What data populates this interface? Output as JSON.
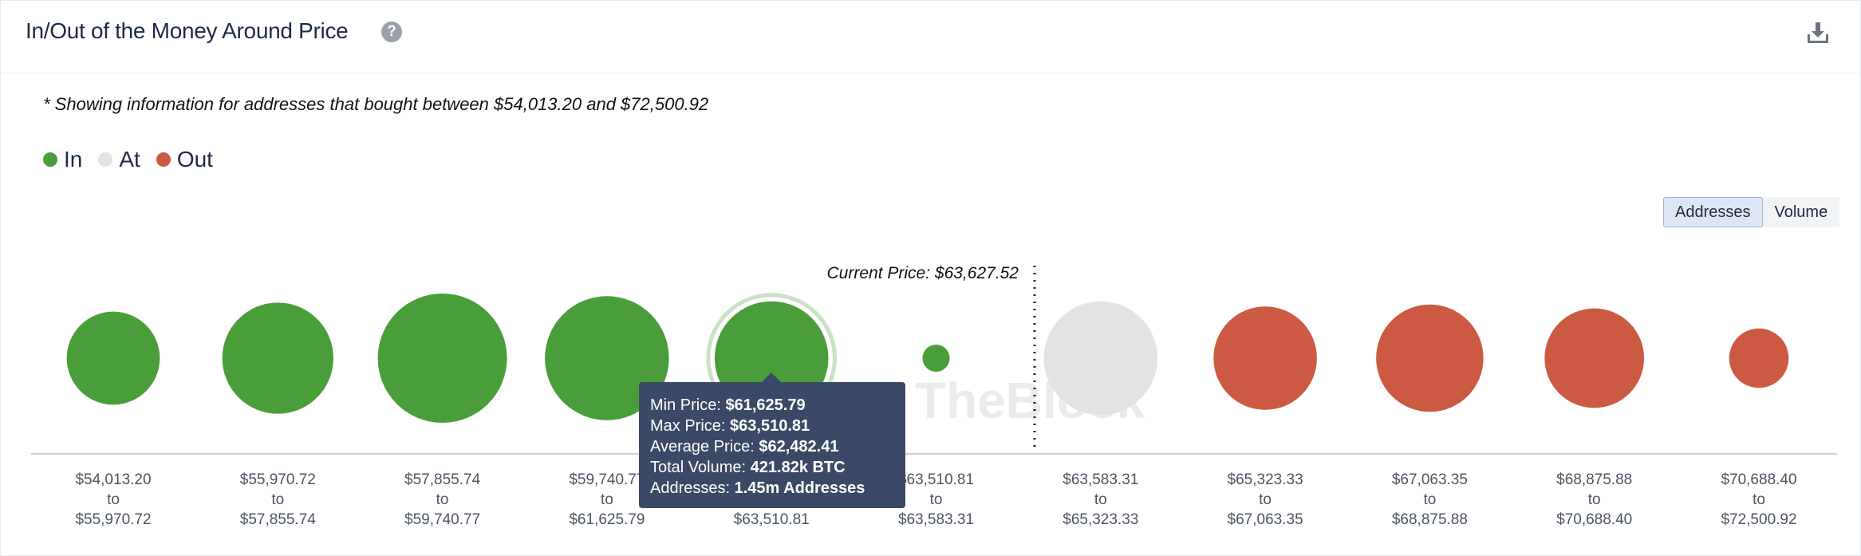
{
  "header": {
    "title": "In/Out of the Money Around Price",
    "help_icon": "question-circle-icon",
    "download_icon": "download-icon"
  },
  "note": "* Showing information for addresses that bought between $54,013.20 and $72,500.92",
  "legend": [
    {
      "label": "In",
      "color": "#4a9e3a"
    },
    {
      "label": "At",
      "color": "#e3e3e3"
    },
    {
      "label": "Out",
      "color": "#cc5a42"
    }
  ],
  "toggle": {
    "addresses_label": "Addresses",
    "volume_label": "Volume",
    "active": "Addresses"
  },
  "watermark": "TheBlock",
  "current_price_label": "Current Price: $63,627.52",
  "chart_data": {
    "type": "bubble",
    "metric": "Addresses",
    "current_price": 63627.52,
    "buckets": [
      {
        "range": [
          "$54,013.20",
          "to",
          "$55,970.72"
        ],
        "status": "In",
        "relative_size": 0.72
      },
      {
        "range": [
          "$55,970.72",
          "to",
          "$57,855.74"
        ],
        "status": "In",
        "relative_size": 0.86
      },
      {
        "range": [
          "$57,855.74",
          "to",
          "$59,740.77"
        ],
        "status": "In",
        "relative_size": 1.0
      },
      {
        "range": [
          "$59,740.77",
          "to",
          "$61,625.79"
        ],
        "status": "In",
        "relative_size": 0.96
      },
      {
        "range": [
          "$61,625.79",
          "to",
          "$63,510.81"
        ],
        "status": "In",
        "relative_size": 0.88,
        "highlighted": true
      },
      {
        "range": [
          "$63,510.81",
          "to",
          "$63,583.31"
        ],
        "status": "In",
        "relative_size": 0.21
      },
      {
        "range": [
          "$63,583.31",
          "to",
          "$65,323.33"
        ],
        "status": "At",
        "relative_size": 0.88
      },
      {
        "range": [
          "$65,323.33",
          "to",
          "$67,063.35"
        ],
        "status": "Out",
        "relative_size": 0.8
      },
      {
        "range": [
          "$67,063.35",
          "to",
          "$68,875.88"
        ],
        "status": "Out",
        "relative_size": 0.83
      },
      {
        "range": [
          "$68,875.88",
          "to",
          "$70,688.40"
        ],
        "status": "Out",
        "relative_size": 0.77
      },
      {
        "range": [
          "$70,688.40",
          "to",
          "$72,500.92"
        ],
        "status": "Out",
        "relative_size": 0.46
      }
    ]
  },
  "tooltip": {
    "rows": [
      {
        "label": "Min Price:",
        "value": "$61,625.79"
      },
      {
        "label": "Max Price:",
        "value": "$63,510.81"
      },
      {
        "label": "Average Price:",
        "value": "$62,482.41"
      },
      {
        "label": "Total Volume:",
        "value": "421.82k BTC"
      },
      {
        "label": "Addresses:",
        "value": "1.45m Addresses"
      }
    ]
  }
}
